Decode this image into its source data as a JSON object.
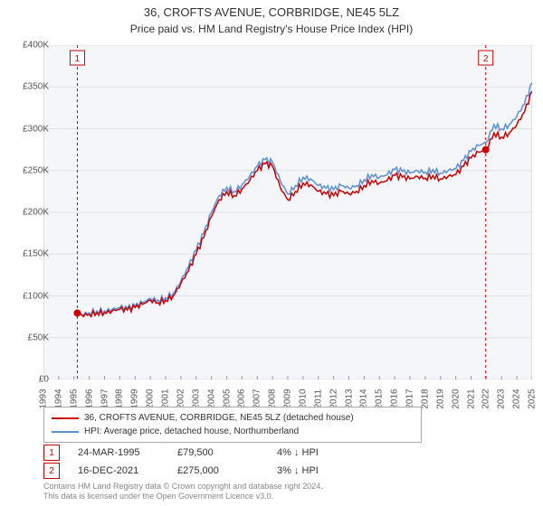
{
  "title": "36, CROFTS AVENUE, CORBRIDGE, NE45 5LZ",
  "subtitle": "Price paid vs. HM Land Registry's House Price Index (HPI)",
  "chart": {
    "type": "line",
    "background_color": "#f5f6fa",
    "plot_border_color": "#cccccc",
    "grid_color": "#e0e0e0",
    "y_axis": {
      "min": 0,
      "max": 400000,
      "tick_step": 50000,
      "tick_labels": [
        "£0",
        "£50K",
        "£100K",
        "£150K",
        "£200K",
        "£250K",
        "£300K",
        "£350K",
        "£400K"
      ],
      "label_fontsize": 10,
      "label_color": "#555555"
    },
    "x_axis": {
      "min": 1993,
      "max": 2025,
      "tick_step": 1,
      "tick_labels": [
        "1993",
        "1994",
        "1995",
        "1996",
        "1997",
        "1998",
        "1999",
        "2000",
        "2001",
        "2002",
        "2003",
        "2004",
        "2005",
        "2006",
        "2007",
        "2008",
        "2009",
        "2010",
        "2011",
        "2012",
        "2013",
        "2014",
        "2015",
        "2016",
        "2017",
        "2018",
        "2019",
        "2020",
        "2021",
        "2022",
        "2023",
        "2024",
        "2025"
      ],
      "label_fontsize": 10,
      "label_color": "#555555",
      "label_rotation": -90
    },
    "series": [
      {
        "name": "property",
        "label": "36, CROFTS AVENUE, CORBRIDGE, NE45 5LZ (detached house)",
        "color": "#cc0000",
        "line_width": 1.5,
        "data": [
          [
            1995.0,
            78000
          ],
          [
            1995.5,
            77000
          ],
          [
            1996.0,
            78000
          ],
          [
            1996.5,
            80000
          ],
          [
            1997.0,
            80000
          ],
          [
            1997.5,
            82000
          ],
          [
            1998.0,
            84000
          ],
          [
            1998.5,
            83000
          ],
          [
            1999.0,
            86000
          ],
          [
            1999.5,
            90000
          ],
          [
            2000.0,
            95000
          ],
          [
            2000.5,
            92000
          ],
          [
            2001.0,
            95000
          ],
          [
            2001.5,
            100000
          ],
          [
            2002.0,
            115000
          ],
          [
            2002.5,
            130000
          ],
          [
            2003.0,
            150000
          ],
          [
            2003.5,
            170000
          ],
          [
            2004.0,
            195000
          ],
          [
            2004.5,
            215000
          ],
          [
            2005.0,
            225000
          ],
          [
            2005.5,
            220000
          ],
          [
            2006.0,
            228000
          ],
          [
            2006.5,
            238000
          ],
          [
            2007.0,
            250000
          ],
          [
            2007.5,
            258000
          ],
          [
            2008.0,
            255000
          ],
          [
            2008.5,
            230000
          ],
          [
            2009.0,
            215000
          ],
          [
            2009.5,
            225000
          ],
          [
            2010.0,
            235000
          ],
          [
            2010.5,
            233000
          ],
          [
            2011.0,
            225000
          ],
          [
            2011.5,
            222000
          ],
          [
            2012.0,
            220000
          ],
          [
            2012.5,
            225000
          ],
          [
            2013.0,
            222000
          ],
          [
            2013.5,
            225000
          ],
          [
            2014.0,
            232000
          ],
          [
            2014.5,
            238000
          ],
          [
            2015.0,
            235000
          ],
          [
            2015.5,
            238000
          ],
          [
            2016.0,
            244000
          ],
          [
            2016.5,
            242000
          ],
          [
            2017.0,
            240000
          ],
          [
            2017.5,
            243000
          ],
          [
            2018.0,
            241000
          ],
          [
            2018.5,
            244000
          ],
          [
            2019.0,
            240000
          ],
          [
            2019.5,
            243000
          ],
          [
            2020.0,
            245000
          ],
          [
            2020.5,
            255000
          ],
          [
            2021.0,
            265000
          ],
          [
            2021.5,
            272000
          ],
          [
            2022.0,
            275000
          ],
          [
            2022.5,
            295000
          ],
          [
            2023.0,
            290000
          ],
          [
            2023.5,
            295000
          ],
          [
            2024.0,
            305000
          ],
          [
            2024.5,
            320000
          ],
          [
            2025.0,
            345000
          ]
        ]
      },
      {
        "name": "hpi",
        "label": "HPI: Average price, detached house, Northumberland",
        "color": "#5b8fd6",
        "line_width": 1.5,
        "data": [
          [
            1995.0,
            79000
          ],
          [
            1995.5,
            78000
          ],
          [
            1996.0,
            80000
          ],
          [
            1996.5,
            82000
          ],
          [
            1997.0,
            82000
          ],
          [
            1997.5,
            84000
          ],
          [
            1998.0,
            86000
          ],
          [
            1998.5,
            85000
          ],
          [
            1999.0,
            88000
          ],
          [
            1999.5,
            92000
          ],
          [
            2000.0,
            97000
          ],
          [
            2000.5,
            95000
          ],
          [
            2001.0,
            98000
          ],
          [
            2001.5,
            103000
          ],
          [
            2002.0,
            118000
          ],
          [
            2002.5,
            135000
          ],
          [
            2003.0,
            155000
          ],
          [
            2003.5,
            175000
          ],
          [
            2004.0,
            200000
          ],
          [
            2004.5,
            220000
          ],
          [
            2005.0,
            230000
          ],
          [
            2005.5,
            225000
          ],
          [
            2006.0,
            233000
          ],
          [
            2006.5,
            243000
          ],
          [
            2007.0,
            255000
          ],
          [
            2007.5,
            263000
          ],
          [
            2008.0,
            260000
          ],
          [
            2008.5,
            238000
          ],
          [
            2009.0,
            222000
          ],
          [
            2009.5,
            232000
          ],
          [
            2010.0,
            242000
          ],
          [
            2010.5,
            240000
          ],
          [
            2011.0,
            232000
          ],
          [
            2011.5,
            229000
          ],
          [
            2012.0,
            227000
          ],
          [
            2012.5,
            232000
          ],
          [
            2013.0,
            229000
          ],
          [
            2013.5,
            232000
          ],
          [
            2014.0,
            239000
          ],
          [
            2014.5,
            245000
          ],
          [
            2015.0,
            242000
          ],
          [
            2015.5,
            245000
          ],
          [
            2016.0,
            251000
          ],
          [
            2016.5,
            249000
          ],
          [
            2017.0,
            247000
          ],
          [
            2017.5,
            250000
          ],
          [
            2018.0,
            248000
          ],
          [
            2018.5,
            251000
          ],
          [
            2019.0,
            247000
          ],
          [
            2019.5,
            250000
          ],
          [
            2020.0,
            252000
          ],
          [
            2020.5,
            262000
          ],
          [
            2021.0,
            273000
          ],
          [
            2021.5,
            280000
          ],
          [
            2022.0,
            284000
          ],
          [
            2022.5,
            305000
          ],
          [
            2023.0,
            300000
          ],
          [
            2023.5,
            305000
          ],
          [
            2024.0,
            315000
          ],
          [
            2024.5,
            330000
          ],
          [
            2025.0,
            355000
          ]
        ]
      }
    ],
    "markers": [
      {
        "index": 1,
        "x": 1995.22,
        "y": 79500,
        "vline_color": "#cc0000",
        "vline_dash": "3,3",
        "dot_color": "#cc0000",
        "dot_radius": 4
      },
      {
        "index": 2,
        "x": 2021.96,
        "y": 275000,
        "vline_color": "#cc0000",
        "vline_dash": "3,3",
        "dot_color": "#cc0000",
        "dot_radius": 4
      }
    ]
  },
  "legend": {
    "border_color": "#aaaaaa",
    "background": "#ffffff",
    "fontsize": 10
  },
  "sales": [
    {
      "marker": "1",
      "date": "24-MAR-1995",
      "price": "£79,500",
      "delta": "4% ↓ HPI"
    },
    {
      "marker": "2",
      "date": "16-DEC-2021",
      "price": "£275,000",
      "delta": "3% ↓ HPI"
    }
  ],
  "footer": {
    "line1": "Contains HM Land Registry data © Crown copyright and database right 2024.",
    "line2": "This data is licensed under the Open Government Licence v3.0."
  }
}
